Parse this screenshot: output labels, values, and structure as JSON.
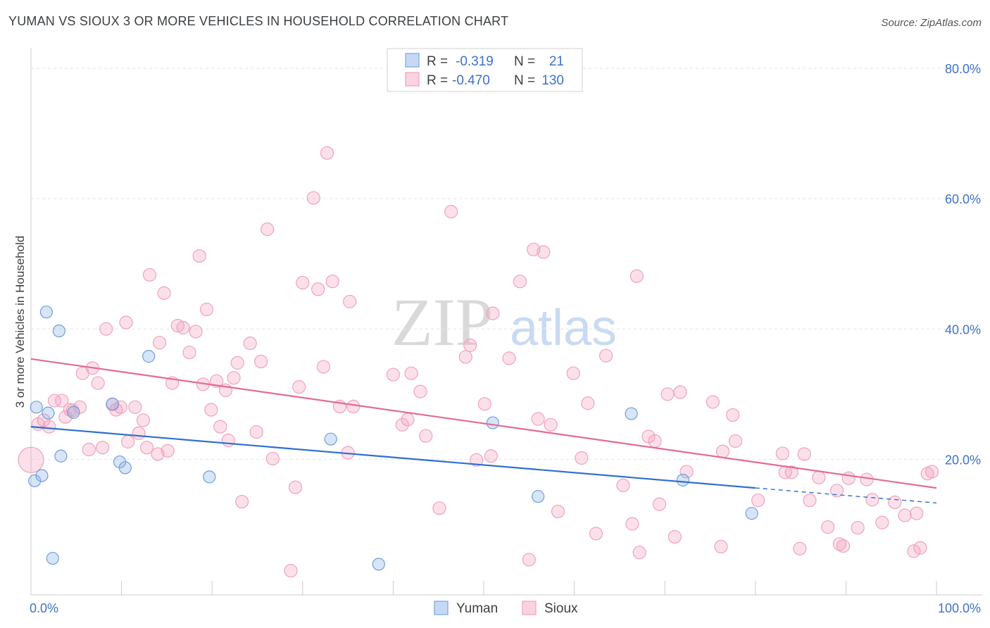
{
  "title": "YUMAN VS SIOUX 3 OR MORE VEHICLES IN HOUSEHOLD CORRELATION CHART",
  "source": "Source: ZipAtlas.com",
  "watermark": {
    "zip": "ZIP",
    "atlas": "atlas"
  },
  "legend": {
    "r_label": "R =",
    "n_label": "N =",
    "rows": [
      {
        "r": "-0.319",
        "n": "21"
      },
      {
        "r": "-0.470",
        "n": "130"
      }
    ]
  },
  "chart_data": {
    "type": "scatter",
    "xlabel": "",
    "ylabel": "3 or more Vehicles in Household",
    "xlim": [
      0,
      100
    ],
    "ylim": [
      0,
      80
    ],
    "x_tick_labels": [
      "0.0%",
      "100.0%"
    ],
    "y_ticks": [
      20,
      40,
      60,
      80
    ],
    "y_tick_labels": [
      "20.0%",
      "40.0%",
      "60.0%",
      "80.0%"
    ],
    "grid": "horizontal dashed",
    "legend_position": "top-center",
    "colors": {
      "yuman": "#7aa7e0",
      "sioux": "#f2a0bb",
      "yuman_line": "#2f6fd1",
      "sioux_line": "#e36b95"
    },
    "series": [
      {
        "name": "Yuman",
        "trend": {
          "x0": 0,
          "y0": 25.0,
          "x1": 80,
          "y1": 15.6,
          "dashed_to_x": 100,
          "dashed_to_y": 13.3
        },
        "points": [
          [
            0.4,
            16.7
          ],
          [
            0.6,
            28.0
          ],
          [
            1.2,
            17.5
          ],
          [
            1.9,
            27.1
          ],
          [
            1.7,
            42.6
          ],
          [
            2.4,
            4.8
          ],
          [
            3.1,
            39.7
          ],
          [
            3.3,
            20.5
          ],
          [
            4.7,
            27.2
          ],
          [
            9.0,
            28.5
          ],
          [
            9.8,
            19.6
          ],
          [
            10.4,
            18.7
          ],
          [
            13.0,
            35.8
          ],
          [
            19.7,
            17.3
          ],
          [
            33.1,
            23.1
          ],
          [
            38.4,
            3.9
          ],
          [
            51.0,
            25.6
          ],
          [
            56.0,
            14.3
          ],
          [
            66.3,
            27.0
          ],
          [
            72.0,
            16.8
          ],
          [
            79.6,
            11.7
          ]
        ]
      },
      {
        "name": "Sioux",
        "trend": {
          "x0": 0,
          "y0": 35.4,
          "x1": 100,
          "y1": 15.6
        },
        "points": [
          [
            0.0,
            19.9
          ],
          [
            0.8,
            25.4
          ],
          [
            1.4,
            26.0
          ],
          [
            2.0,
            25.0
          ],
          [
            2.6,
            29.0
          ],
          [
            3.4,
            29.0
          ],
          [
            3.8,
            26.5
          ],
          [
            4.3,
            27.6
          ],
          [
            4.6,
            27.5
          ],
          [
            5.4,
            28.0
          ],
          [
            5.7,
            33.2
          ],
          [
            6.4,
            21.5
          ],
          [
            6.8,
            34.0
          ],
          [
            7.4,
            31.7
          ],
          [
            7.9,
            21.8
          ],
          [
            8.3,
            40.0
          ],
          [
            9.0,
            28.4
          ],
          [
            9.4,
            27.6
          ],
          [
            9.9,
            28.0
          ],
          [
            10.5,
            41.0
          ],
          [
            10.7,
            22.7
          ],
          [
            11.5,
            28.0
          ],
          [
            11.9,
            24.0
          ],
          [
            12.4,
            26.0
          ],
          [
            12.8,
            21.8
          ],
          [
            13.1,
            48.3
          ],
          [
            14.0,
            20.8
          ],
          [
            14.2,
            37.9
          ],
          [
            14.7,
            45.5
          ],
          [
            15.1,
            21.3
          ],
          [
            15.6,
            31.7
          ],
          [
            16.2,
            40.5
          ],
          [
            16.8,
            40.2
          ],
          [
            17.5,
            36.4
          ],
          [
            18.2,
            39.6
          ],
          [
            18.6,
            51.2
          ],
          [
            19.0,
            31.5
          ],
          [
            19.4,
            43.0
          ],
          [
            19.9,
            27.6
          ],
          [
            20.5,
            32.0
          ],
          [
            20.9,
            25.0
          ],
          [
            21.5,
            30.6
          ],
          [
            21.8,
            22.9
          ],
          [
            22.4,
            32.5
          ],
          [
            22.8,
            34.8
          ],
          [
            23.3,
            13.5
          ],
          [
            24.2,
            37.8
          ],
          [
            24.9,
            24.2
          ],
          [
            25.4,
            35.0
          ],
          [
            26.1,
            55.3
          ],
          [
            26.7,
            20.1
          ],
          [
            28.7,
            2.9
          ],
          [
            29.2,
            15.7
          ],
          [
            29.6,
            31.1
          ],
          [
            30.0,
            47.1
          ],
          [
            31.2,
            60.1
          ],
          [
            31.7,
            46.1
          ],
          [
            32.3,
            34.2
          ],
          [
            32.7,
            67.0
          ],
          [
            33.3,
            47.3
          ],
          [
            34.1,
            28.1
          ],
          [
            35.0,
            21.0
          ],
          [
            35.2,
            44.2
          ],
          [
            35.6,
            28.1
          ],
          [
            40.0,
            33.0
          ],
          [
            41.0,
            25.3
          ],
          [
            41.6,
            26.1
          ],
          [
            42.0,
            33.2
          ],
          [
            43.0,
            30.4
          ],
          [
            43.6,
            23.6
          ],
          [
            45.1,
            12.5
          ],
          [
            46.4,
            58.0
          ],
          [
            48.0,
            35.7
          ],
          [
            48.5,
            37.5
          ],
          [
            49.2,
            19.9
          ],
          [
            50.1,
            28.5
          ],
          [
            50.8,
            20.5
          ],
          [
            51.0,
            42.4
          ],
          [
            52.8,
            35.5
          ],
          [
            54.0,
            47.3
          ],
          [
            55.0,
            4.6
          ],
          [
            55.5,
            52.2
          ],
          [
            56.0,
            26.2
          ],
          [
            56.6,
            51.8
          ],
          [
            57.4,
            25.3
          ],
          [
            58.2,
            12.0
          ],
          [
            59.9,
            33.2
          ],
          [
            60.8,
            20.2
          ],
          [
            61.5,
            28.6
          ],
          [
            62.4,
            8.6
          ],
          [
            63.5,
            35.9
          ],
          [
            65.4,
            16.0
          ],
          [
            66.4,
            10.1
          ],
          [
            66.9,
            48.1
          ],
          [
            67.2,
            5.7
          ],
          [
            68.2,
            23.5
          ],
          [
            68.9,
            22.8
          ],
          [
            69.4,
            13.1
          ],
          [
            70.3,
            30.0
          ],
          [
            71.1,
            8.1
          ],
          [
            71.7,
            30.3
          ],
          [
            72.4,
            18.1
          ],
          [
            75.3,
            28.8
          ],
          [
            76.2,
            6.6
          ],
          [
            76.4,
            21.2
          ],
          [
            77.5,
            26.8
          ],
          [
            77.8,
            22.8
          ],
          [
            80.3,
            13.7
          ],
          [
            83.0,
            20.9
          ],
          [
            83.3,
            18.0
          ],
          [
            84.0,
            18.0
          ],
          [
            84.9,
            6.3
          ],
          [
            85.4,
            20.8
          ],
          [
            86.0,
            13.7
          ],
          [
            87.0,
            17.2
          ],
          [
            88.0,
            9.6
          ],
          [
            89.0,
            15.2
          ],
          [
            89.3,
            7.0
          ],
          [
            89.7,
            6.7
          ],
          [
            90.3,
            17.1
          ],
          [
            91.3,
            9.5
          ],
          [
            92.3,
            16.9
          ],
          [
            92.9,
            13.8
          ],
          [
            94.0,
            10.3
          ],
          [
            95.4,
            13.4
          ],
          [
            96.5,
            11.4
          ],
          [
            97.5,
            5.9
          ],
          [
            97.8,
            11.7
          ],
          [
            98.2,
            6.4
          ],
          [
            99.0,
            17.8
          ],
          [
            99.5,
            18.1
          ]
        ]
      }
    ]
  }
}
